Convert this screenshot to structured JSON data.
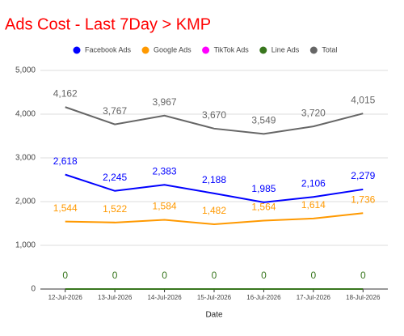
{
  "chart_data": {
    "type": "line",
    "title": "Ads Cost - Last 7Day > KMP",
    "x_label": "Date",
    "categories": [
      "12-Jul-2026",
      "13-Jul-2026",
      "14-Jul-2026",
      "15-Jul-2026",
      "16-Jul-2026",
      "17-Jul-2026",
      "18-Jul-2026"
    ],
    "series": [
      {
        "name": "Facebook Ads",
        "color": "#0000ff",
        "values": [
          2618,
          2245,
          2383,
          2188,
          1985,
          2106,
          2279
        ],
        "value_labels": [
          "2,618",
          "2,245",
          "2,383",
          "2,188",
          "1,985",
          "2,106",
          "2,279"
        ]
      },
      {
        "name": "Google Ads",
        "color": "#ff9900",
        "values": [
          1544,
          1522,
          1584,
          1482,
          1564,
          1614,
          1736
        ],
        "value_labels": [
          "1,544",
          "1,522",
          "1,584",
          "1,482",
          "1,564",
          "1,614",
          "1,736"
        ]
      },
      {
        "name": "TikTok Ads",
        "color": "#ff00ff",
        "values": [
          0,
          0,
          0,
          0,
          0,
          0,
          0
        ]
      },
      {
        "name": "Line Ads",
        "color": "#38761d",
        "values": [
          0,
          0,
          0,
          0,
          0,
          0,
          0
        ],
        "data_labels": true
      },
      {
        "name": "Total",
        "color": "#666666",
        "values": [
          4162,
          3767,
          3967,
          3670,
          3549,
          3720,
          4015
        ],
        "value_labels": [
          "4,162",
          "3,767",
          "3,967",
          "3,670",
          "3,549",
          "3,720",
          "4,015"
        ]
      }
    ],
    "ylim": [
      0,
      5000
    ],
    "yticks": [
      0,
      {
        "value": 1000,
        "label": "1,000"
      },
      {
        "value": 2000,
        "label": "2,000"
      },
      {
        "value": 3000,
        "label": "3,000"
      },
      {
        "value": 4000,
        "label": "4,000"
      },
      {
        "value": 5000,
        "label": "5,000"
      }
    ],
    "grid": true,
    "legend": "top",
    "title_color": "#ff0000"
  }
}
